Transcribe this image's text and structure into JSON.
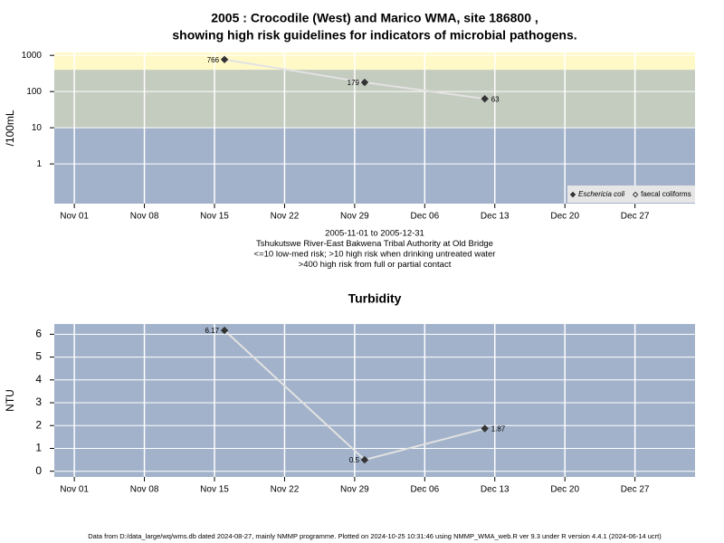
{
  "chart_data": [
    {
      "type": "line",
      "title": "2005 : Crocodile (West) and Marico WMA, site 186800 ,",
      "subtitle": "showing high risk guidelines for indicators of microbial pathogens.",
      "y_label": "/100mL",
      "log_y": true,
      "grid": true,
      "legend": "bottom-right",
      "x": [
        "2005-11-16",
        "2005-11-30",
        "2005-12-12"
      ],
      "series": [
        {
          "name": "Eschericia coli",
          "color": "#333333",
          "line_color": "#e2e2e2",
          "marker": "filled",
          "values": [
            766,
            179,
            63
          ]
        },
        {
          "name": "faecal coliforms",
          "color": "#333333",
          "line_color": "#e2e2e2",
          "marker": "open",
          "values": [
            null,
            null,
            null
          ]
        }
      ],
      "xlim": [
        "2005-10-30",
        "2006-01-02"
      ],
      "xticks": [
        {
          "value": "2005-11-01",
          "label": "Nov 01"
        },
        {
          "value": "2005-11-08",
          "label": "Nov 08"
        },
        {
          "value": "2005-11-15",
          "label": "Nov 15"
        },
        {
          "value": "2005-11-22",
          "label": "Nov 22"
        },
        {
          "value": "2005-11-29",
          "label": "Nov 29"
        },
        {
          "value": "2005-12-06",
          "label": "Dec 06"
        },
        {
          "value": "2005-12-13",
          "label": "Dec 13"
        },
        {
          "value": "2005-12-20",
          "label": "Dec 20"
        },
        {
          "value": "2005-12-27",
          "label": "Dec 27"
        }
      ],
      "ylim": [
        0.08,
        1200
      ],
      "yticks": [
        1,
        10,
        100,
        1000
      ],
      "thresholds": [
        10,
        400
      ],
      "band_colors": [
        "#a2b2ca",
        "#c4cbbf",
        "#fff9c8"
      ],
      "notes": [
        "2005-11-01 to 2005-12-31",
        "Tshukutswe River-East Bakwena Tribal Authority at Old Bridge",
        "<=10 low-med risk; >10 high risk when drinking untreated water",
        ">400 high risk from full or partial contact"
      ]
    },
    {
      "type": "line",
      "title": "Turbidity",
      "y_label": "NTU",
      "log_y": false,
      "grid": true,
      "background": "#a2b2ca",
      "x": [
        "2005-11-16",
        "2005-11-30",
        "2005-12-12"
      ],
      "series": [
        {
          "color": "#333333",
          "line_color": "#e2e2e2",
          "marker": "filled",
          "values": [
            6.17,
            0.5,
            1.87
          ]
        }
      ],
      "xlim": [
        "2005-10-30",
        "2006-01-02"
      ],
      "xticks": [
        {
          "value": "2005-11-01",
          "label": "Nov 01"
        },
        {
          "value": "2005-11-08",
          "label": "Nov 08"
        },
        {
          "value": "2005-11-15",
          "label": "Nov 15"
        },
        {
          "value": "2005-11-22",
          "label": "Nov 22"
        },
        {
          "value": "2005-11-29",
          "label": "Nov 29"
        },
        {
          "value": "2005-12-06",
          "label": "Dec 06"
        },
        {
          "value": "2005-12-13",
          "label": "Dec 13"
        },
        {
          "value": "2005-12-20",
          "label": "Dec 20"
        },
        {
          "value": "2005-12-27",
          "label": "Dec 27"
        }
      ],
      "ylim": [
        -0.25,
        6.45
      ],
      "yticks": [
        0,
        1,
        2,
        3,
        4,
        5,
        6
      ]
    }
  ],
  "footer": "Data from D:/data_large/wq/wms.db dated 2024-08-27, mainly NMMP programme. Plotted on 2024-10-25 10:31:46 using NMMP_WMA_web.R ver 9.3 under R version 4.4.1 (2024-06-14 ucrt)"
}
